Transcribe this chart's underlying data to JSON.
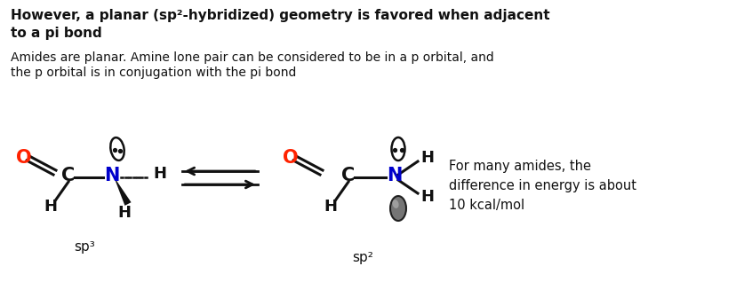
{
  "background_color": "#ffffff",
  "title_line1": "However, a planar (sp²-hybridized) geometry is favored when adjacent",
  "title_line2": "to a pi bond",
  "subtitle_line1": "Amides are planar. Amine lone pair can be considered to be in a p orbital, and",
  "subtitle_line2": "the p orbital is in conjugation with the pi bond",
  "note": "For many amides, the\ndifference in energy is about\n10 kcal/mol",
  "sp3_label": "sp³",
  "sp2_label": "sp²",
  "figsize": [
    8.46,
    3.18
  ],
  "dpi": 100,
  "red": "#ff2200",
  "blue": "#0000cc",
  "black": "#111111",
  "dark_gray": "#444444"
}
